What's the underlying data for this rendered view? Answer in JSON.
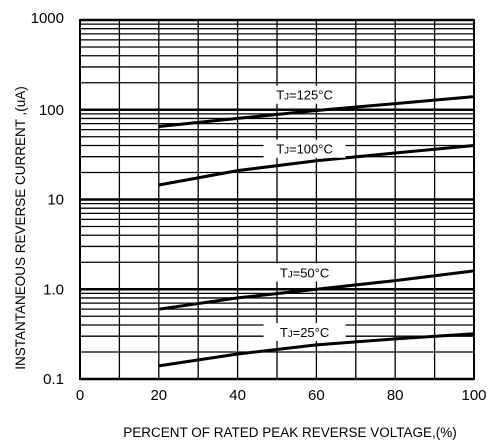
{
  "chart_data": {
    "type": "line",
    "title": "",
    "xlabel": "PERCENT OF RATED PEAK REVERSE VOLTAGE,(%)",
    "ylabel": "INSTANTANEOUS  REVERSE  CURRENT ,(uA)",
    "xlim": [
      0,
      100
    ],
    "ylim": [
      0.1,
      1000
    ],
    "yscale": "log",
    "grid": true,
    "x_ticks": [
      "0",
      "20",
      "40",
      "60",
      "80",
      "100"
    ],
    "y_ticks": [
      "0.1",
      "1.0",
      "10",
      "100",
      "1000"
    ],
    "series": [
      {
        "name": "TJ=125°C",
        "label_sub": "J",
        "label_rest": "=125°C",
        "x": [
          20,
          40,
          60,
          80,
          100
        ],
        "y": [
          65,
          80,
          98,
          117,
          140
        ]
      },
      {
        "name": "TJ=100°C",
        "label_sub": "J",
        "label_rest": "=100°C",
        "x": [
          20,
          40,
          60,
          80,
          100
        ],
        "y": [
          14.5,
          21,
          27,
          33,
          40
        ]
      },
      {
        "name": "TJ=50°C",
        "label_sub": "J",
        "label_rest": "=50°C",
        "x": [
          20,
          40,
          60,
          80,
          100
        ],
        "y": [
          0.6,
          0.8,
          1.0,
          1.25,
          1.6
        ]
      },
      {
        "name": "TJ=25°C",
        "label_sub": "J",
        "label_rest": "=25°C",
        "x": [
          20,
          40,
          60,
          80,
          100
        ],
        "y": [
          0.14,
          0.19,
          0.24,
          0.28,
          0.32
        ]
      }
    ]
  }
}
